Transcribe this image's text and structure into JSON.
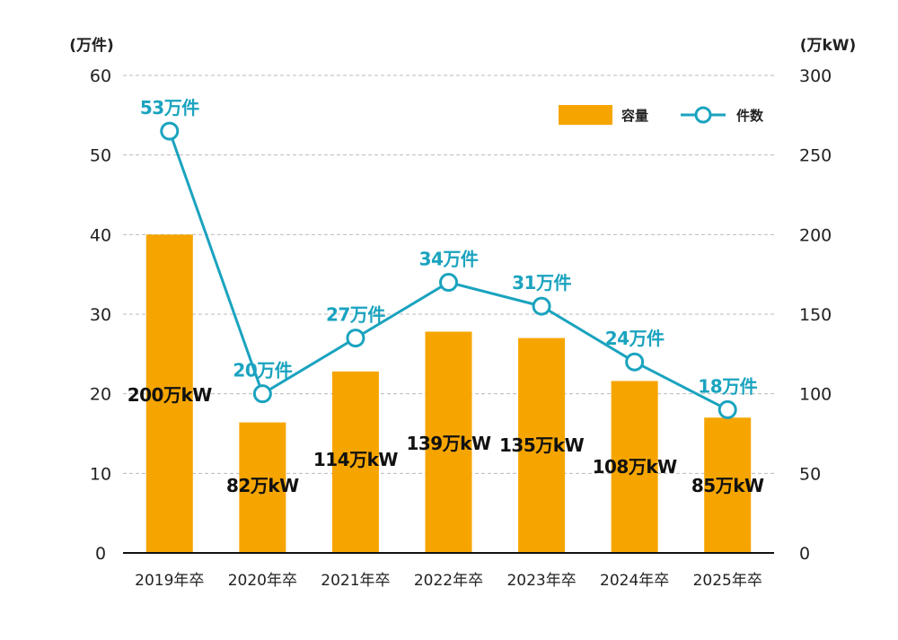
{
  "colors": {
    "bar": "#F6A500",
    "line": "#1AA3BF",
    "grid": "#BBBBBB",
    "axis": "#111111"
  },
  "chart_data": {
    "type": "bar",
    "categories": [
      "2019年卒",
      "2020年卒",
      "2021年卒",
      "2022年卒",
      "2023年卒",
      "2024年卒",
      "2025年卒"
    ],
    "series": [
      {
        "name": "容量",
        "type": "bar",
        "axis": "right",
        "values": [
          200,
          82,
          114,
          139,
          135,
          108,
          85
        ],
        "labels": [
          "200万kW",
          "82万kW",
          "114万kW",
          "139万kW",
          "135万kW",
          "108万kW",
          "85万kW"
        ]
      },
      {
        "name": "件数",
        "type": "line",
        "axis": "left",
        "values": [
          53,
          20,
          27,
          34,
          31,
          24,
          18
        ],
        "labels": [
          "53万件",
          "20万件",
          "27万件",
          "34万件",
          "31万件",
          "24万件",
          "18万件"
        ]
      }
    ],
    "y_left": {
      "label": "(万件)",
      "ylim": [
        0,
        60
      ],
      "ticks": [
        "0",
        "10",
        "20",
        "30",
        "40",
        "50",
        "60"
      ]
    },
    "y_right": {
      "label": "(万kW)",
      "ylim": [
        0,
        300
      ],
      "ticks": [
        "0",
        "50",
        "100",
        "150",
        "200",
        "250",
        "300"
      ]
    },
    "grid": true,
    "legend_position": "top-right"
  }
}
